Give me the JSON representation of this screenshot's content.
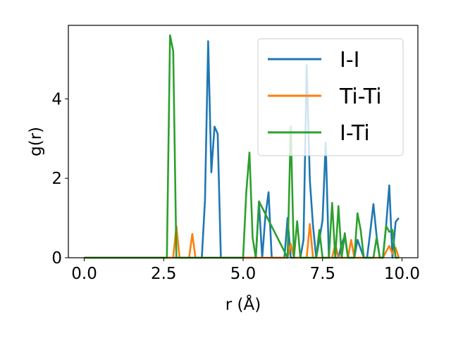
{
  "chart_data": {
    "type": "line",
    "xlabel": "r (Å)",
    "ylabel": "g(r)",
    "xlim": [
      -0.5,
      10.5
    ],
    "ylim": [
      0,
      5.85
    ],
    "xticks": [
      0.0,
      2.5,
      5.0,
      7.5,
      10.0
    ],
    "xtick_labels": [
      "0.0",
      "2.5",
      "5.0",
      "7.5",
      "10.0"
    ],
    "yticks": [
      0,
      2,
      4
    ],
    "ytick_labels": [
      "0",
      "2",
      "4"
    ],
    "grid": false,
    "legend_position": "top-right",
    "series": [
      {
        "name": "I-I",
        "color": "#1f77b4",
        "x": [
          0.0,
          3.7,
          3.8,
          3.9,
          4.0,
          4.1,
          4.2,
          4.3,
          5.4,
          5.5,
          5.6,
          5.7,
          5.8,
          5.9,
          6.3,
          6.4,
          6.5,
          6.6,
          6.8,
          6.9,
          7.0,
          7.1,
          7.2,
          7.3,
          7.4,
          7.5,
          7.6,
          7.7,
          8.0,
          8.1,
          8.2,
          8.3,
          8.5,
          8.6,
          8.8,
          8.9,
          9.0,
          9.1,
          9.2,
          9.3,
          9.4,
          9.5,
          9.6,
          9.7,
          9.8,
          9.9
        ],
        "values": [
          0.0,
          0.0,
          1.45,
          5.45,
          2.15,
          3.3,
          3.12,
          0.0,
          0.0,
          1.38,
          0.0,
          1.05,
          1.65,
          0.0,
          0.0,
          1.0,
          0.0,
          0.0,
          0.0,
          0.45,
          4.85,
          1.95,
          0.8,
          0.0,
          0.45,
          0.95,
          2.9,
          0.0,
          0.0,
          0.35,
          0.55,
          0.0,
          0.0,
          0.45,
          0.0,
          0.0,
          0.65,
          1.35,
          0.55,
          0.0,
          0.0,
          0.8,
          1.82,
          0.0,
          0.9,
          1.0
        ]
      },
      {
        "name": "Ti-Ti",
        "color": "#ff7f0e",
        "x": [
          0.0,
          2.8,
          2.9,
          3.0,
          3.3,
          3.4,
          3.5,
          6.4,
          6.5,
          6.6,
          7.0,
          7.1,
          7.2,
          7.8,
          7.9,
          8.0,
          8.1,
          8.3,
          8.4,
          8.5,
          9.3,
          9.4,
          9.5,
          9.6,
          9.7,
          9.8,
          9.9
        ],
        "values": [
          0.0,
          0.0,
          0.8,
          0.0,
          0.0,
          0.6,
          0.0,
          0.0,
          0.35,
          0.0,
          0.0,
          0.85,
          0.0,
          0.0,
          0.35,
          0.0,
          0.0,
          0.0,
          0.45,
          0.0,
          0.0,
          0.0,
          0.15,
          0.3,
          0.1,
          0.25,
          0.0
        ]
      },
      {
        "name": "I-Ti",
        "color": "#2ca02c",
        "x": [
          0.0,
          2.6,
          2.7,
          2.8,
          2.9,
          5.0,
          5.1,
          5.2,
          5.3,
          5.4,
          5.5,
          6.4,
          6.5,
          6.6,
          6.7,
          6.8,
          6.9,
          7.0,
          7.3,
          7.4,
          7.5,
          7.6,
          7.7,
          7.8,
          7.9,
          8.0,
          8.1,
          8.2,
          8.3,
          8.4,
          8.5,
          8.6,
          8.7,
          8.8,
          9.0,
          9.1,
          9.2,
          9.3,
          9.4,
          9.5,
          9.6,
          9.7,
          9.8,
          9.9
        ],
        "values": [
          0.0,
          0.0,
          5.6,
          5.2,
          0.0,
          0.0,
          1.65,
          2.65,
          0.5,
          0.0,
          1.42,
          0.0,
          3.3,
          0.0,
          0.92,
          0.0,
          0.0,
          0.0,
          0.0,
          0.7,
          0.0,
          0.0,
          0.0,
          1.38,
          0.0,
          1.3,
          0.0,
          0.62,
          0.0,
          0.0,
          0.0,
          1.12,
          0.7,
          0.0,
          0.0,
          0.0,
          0.5,
          0.0,
          0.0,
          0.8,
          0.65,
          0.7,
          0.0,
          0.0
        ]
      }
    ]
  }
}
